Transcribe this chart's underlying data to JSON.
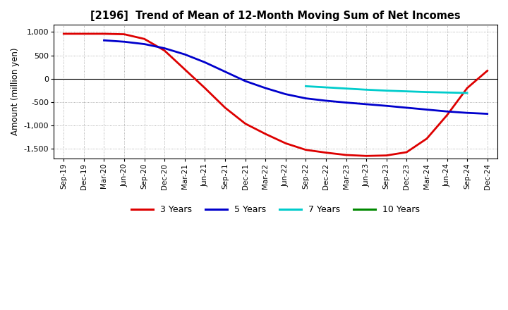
{
  "title": "[2196]  Trend of Mean of 12-Month Moving Sum of Net Incomes",
  "ylabel": "Amount (million yen)",
  "ylim": [
    -1700,
    1150
  ],
  "yticks": [
    -1500,
    -1000,
    -500,
    0,
    500,
    1000
  ],
  "background_color": "#ffffff",
  "grid_color": "#999999",
  "line_colors": {
    "3y": "#dd0000",
    "5y": "#0000cc",
    "7y": "#00cccc",
    "10y": "#008800"
  },
  "legend_labels": [
    "3 Years",
    "5 Years",
    "7 Years",
    "10 Years"
  ],
  "x_labels": [
    "Sep-19",
    "Dec-19",
    "Mar-20",
    "Jun-20",
    "Sep-20",
    "Dec-20",
    "Mar-21",
    "Jun-21",
    "Sep-21",
    "Dec-21",
    "Mar-22",
    "Jun-22",
    "Sep-22",
    "Dec-22",
    "Mar-23",
    "Jun-23",
    "Sep-23",
    "Dec-23",
    "Mar-24",
    "Jun-24",
    "Sep-24",
    "Dec-24"
  ],
  "series_3y": [
    960,
    960,
    960,
    950,
    850,
    600,
    200,
    -200,
    -620,
    -960,
    -1180,
    -1380,
    -1520,
    -1580,
    -1630,
    -1650,
    -1640,
    -1570,
    -1280,
    -780,
    -200,
    170
  ],
  "series_5y": [
    null,
    null,
    820,
    790,
    740,
    650,
    520,
    350,
    150,
    -50,
    -200,
    -330,
    -420,
    -470,
    -510,
    -545,
    -580,
    -620,
    -660,
    -700,
    -730,
    -750
  ],
  "series_7y": [
    null,
    null,
    null,
    null,
    null,
    null,
    null,
    null,
    null,
    null,
    null,
    null,
    -160,
    -185,
    -210,
    -235,
    -255,
    -270,
    -285,
    -295,
    -305,
    null
  ],
  "series_10y": [
    null,
    null,
    null,
    null,
    null,
    null,
    null,
    null,
    null,
    null,
    null,
    null,
    null,
    null,
    null,
    null,
    null,
    null,
    null,
    null,
    null,
    null
  ]
}
